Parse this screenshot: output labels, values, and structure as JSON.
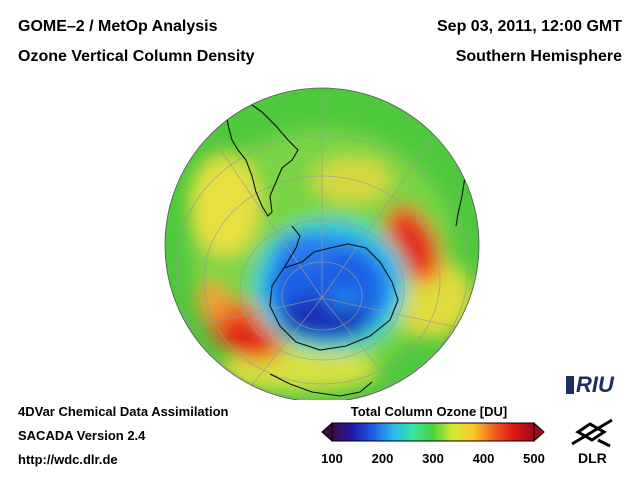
{
  "header": {
    "left_line1": "GOME–2 / MetOp Analysis",
    "left_line2": "Ozone Vertical Column Density",
    "right_line1": "Sep 03, 2011, 12:00 GMT",
    "right_line2": "Southern Hemisphere"
  },
  "footer": {
    "line1": "4DVar Chemical Data Assimilation",
    "line2": "SACADA Version 2.4",
    "line3": "http://wdc.dlr.de"
  },
  "colorbar": {
    "title": "Total Column Ozone [DU]",
    "min": 100,
    "max": 500,
    "ticks": [
      "100",
      "200",
      "300",
      "400",
      "500"
    ],
    "colors": [
      "#3d0a45",
      "#1f1aa8",
      "#1f5ae8",
      "#2ab6f0",
      "#34e8a0",
      "#4ed23a",
      "#d8e838",
      "#f8c828",
      "#f06020",
      "#e01818",
      "#9a0a18"
    ]
  },
  "map": {
    "projection": "orthographic",
    "hemisphere": "Southern Hemisphere",
    "ozone_hole_center": "Antarctica",
    "background_level_du": 300
  },
  "logos": {
    "riu": "RIU",
    "dlr": "DLR"
  }
}
